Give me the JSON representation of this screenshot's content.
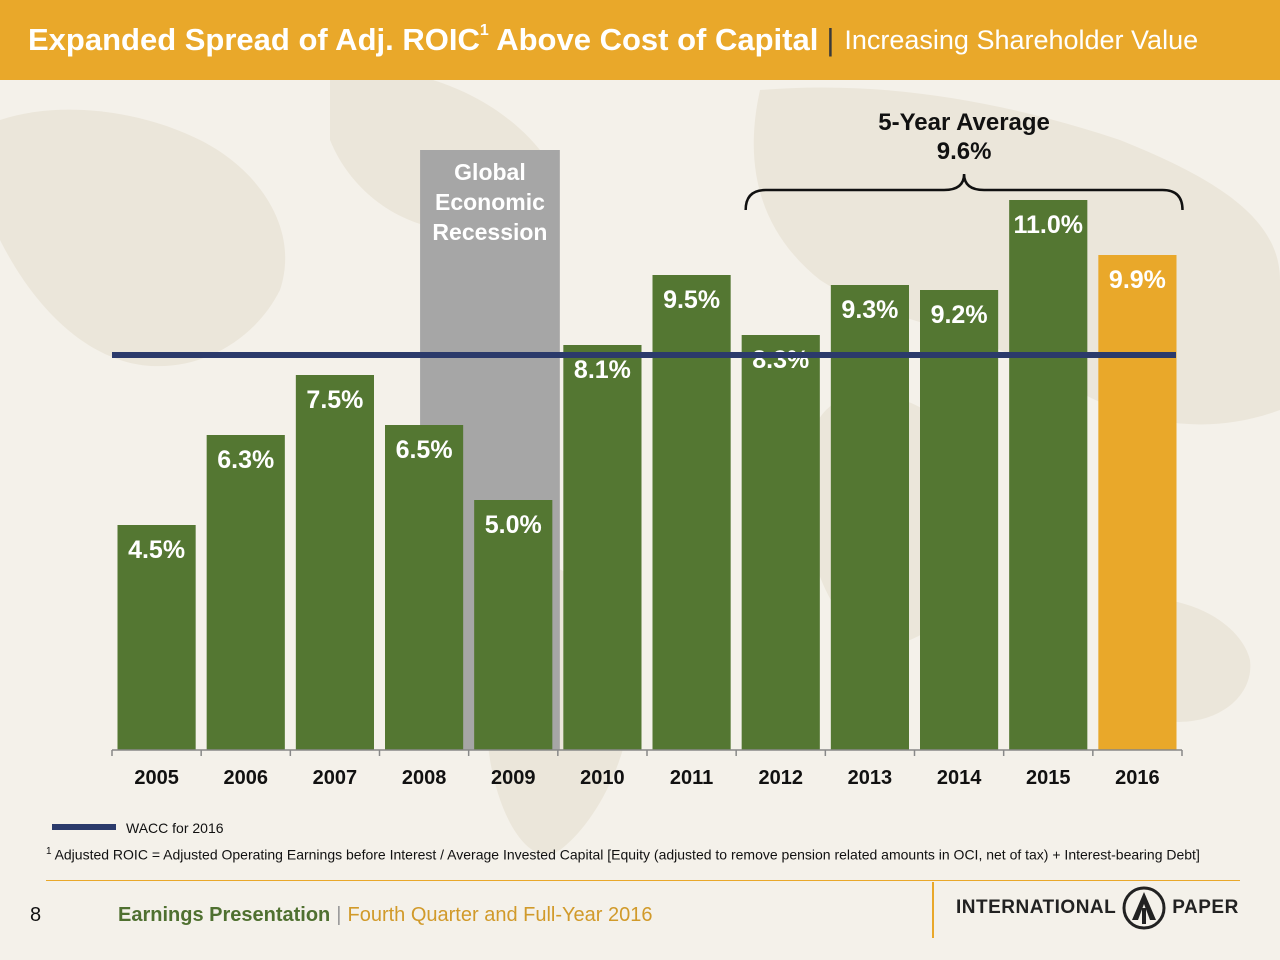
{
  "header": {
    "title": "Expanded Spread of Adj. ROIC",
    "title_sup": "1",
    "title_rest": " Above Cost of Capital",
    "separator": "|",
    "subtitle": "Increasing Shareholder Value"
  },
  "chart_data": {
    "type": "bar",
    "categories": [
      "2005",
      "2006",
      "2007",
      "2008",
      "2009",
      "2010",
      "2011",
      "2012",
      "2013",
      "2014",
      "2015",
      "2016"
    ],
    "values": [
      4.5,
      6.3,
      7.5,
      6.5,
      5.0,
      8.1,
      9.5,
      8.3,
      9.3,
      9.2,
      11.0,
      9.9
    ],
    "value_labels": [
      "4.5%",
      "6.3%",
      "7.5%",
      "6.5%",
      "5.0%",
      "8.1%",
      "9.5%",
      "8.3%",
      "9.3%",
      "9.2%",
      "11.0%",
      "9.9%"
    ],
    "ylim": [
      0,
      14.2
    ],
    "bar_color": "#547732",
    "highlight_category": "2016",
    "highlight_color": "#e9a82a",
    "reference_line": {
      "value": 7.9,
      "label": "WACC for 2016",
      "color": "#2b3a6b"
    },
    "shaded_region": {
      "from": "2008",
      "to": "2009",
      "lines": [
        "Global",
        "Economic",
        "Recession"
      ],
      "color": "#a6a6a6"
    },
    "brace": {
      "from": "2012",
      "to": "2016",
      "title": "5-Year Average",
      "value_label": "9.6%"
    }
  },
  "footnote": {
    "marker": "1",
    "text": "Adjusted ROIC = Adjusted Operating Earnings before Interest / Average Invested Capital [Equity (adjusted to remove pension related amounts in OCI, net of tax) + Interest-bearing Debt]"
  },
  "footer": {
    "page_number": "8",
    "title": "Earnings Presentation",
    "separator": "|",
    "subtitle": "Fourth Quarter and Full-Year 2016"
  },
  "logo": {
    "left_word": "INTERNATIONAL",
    "right_word": "PAPER"
  }
}
